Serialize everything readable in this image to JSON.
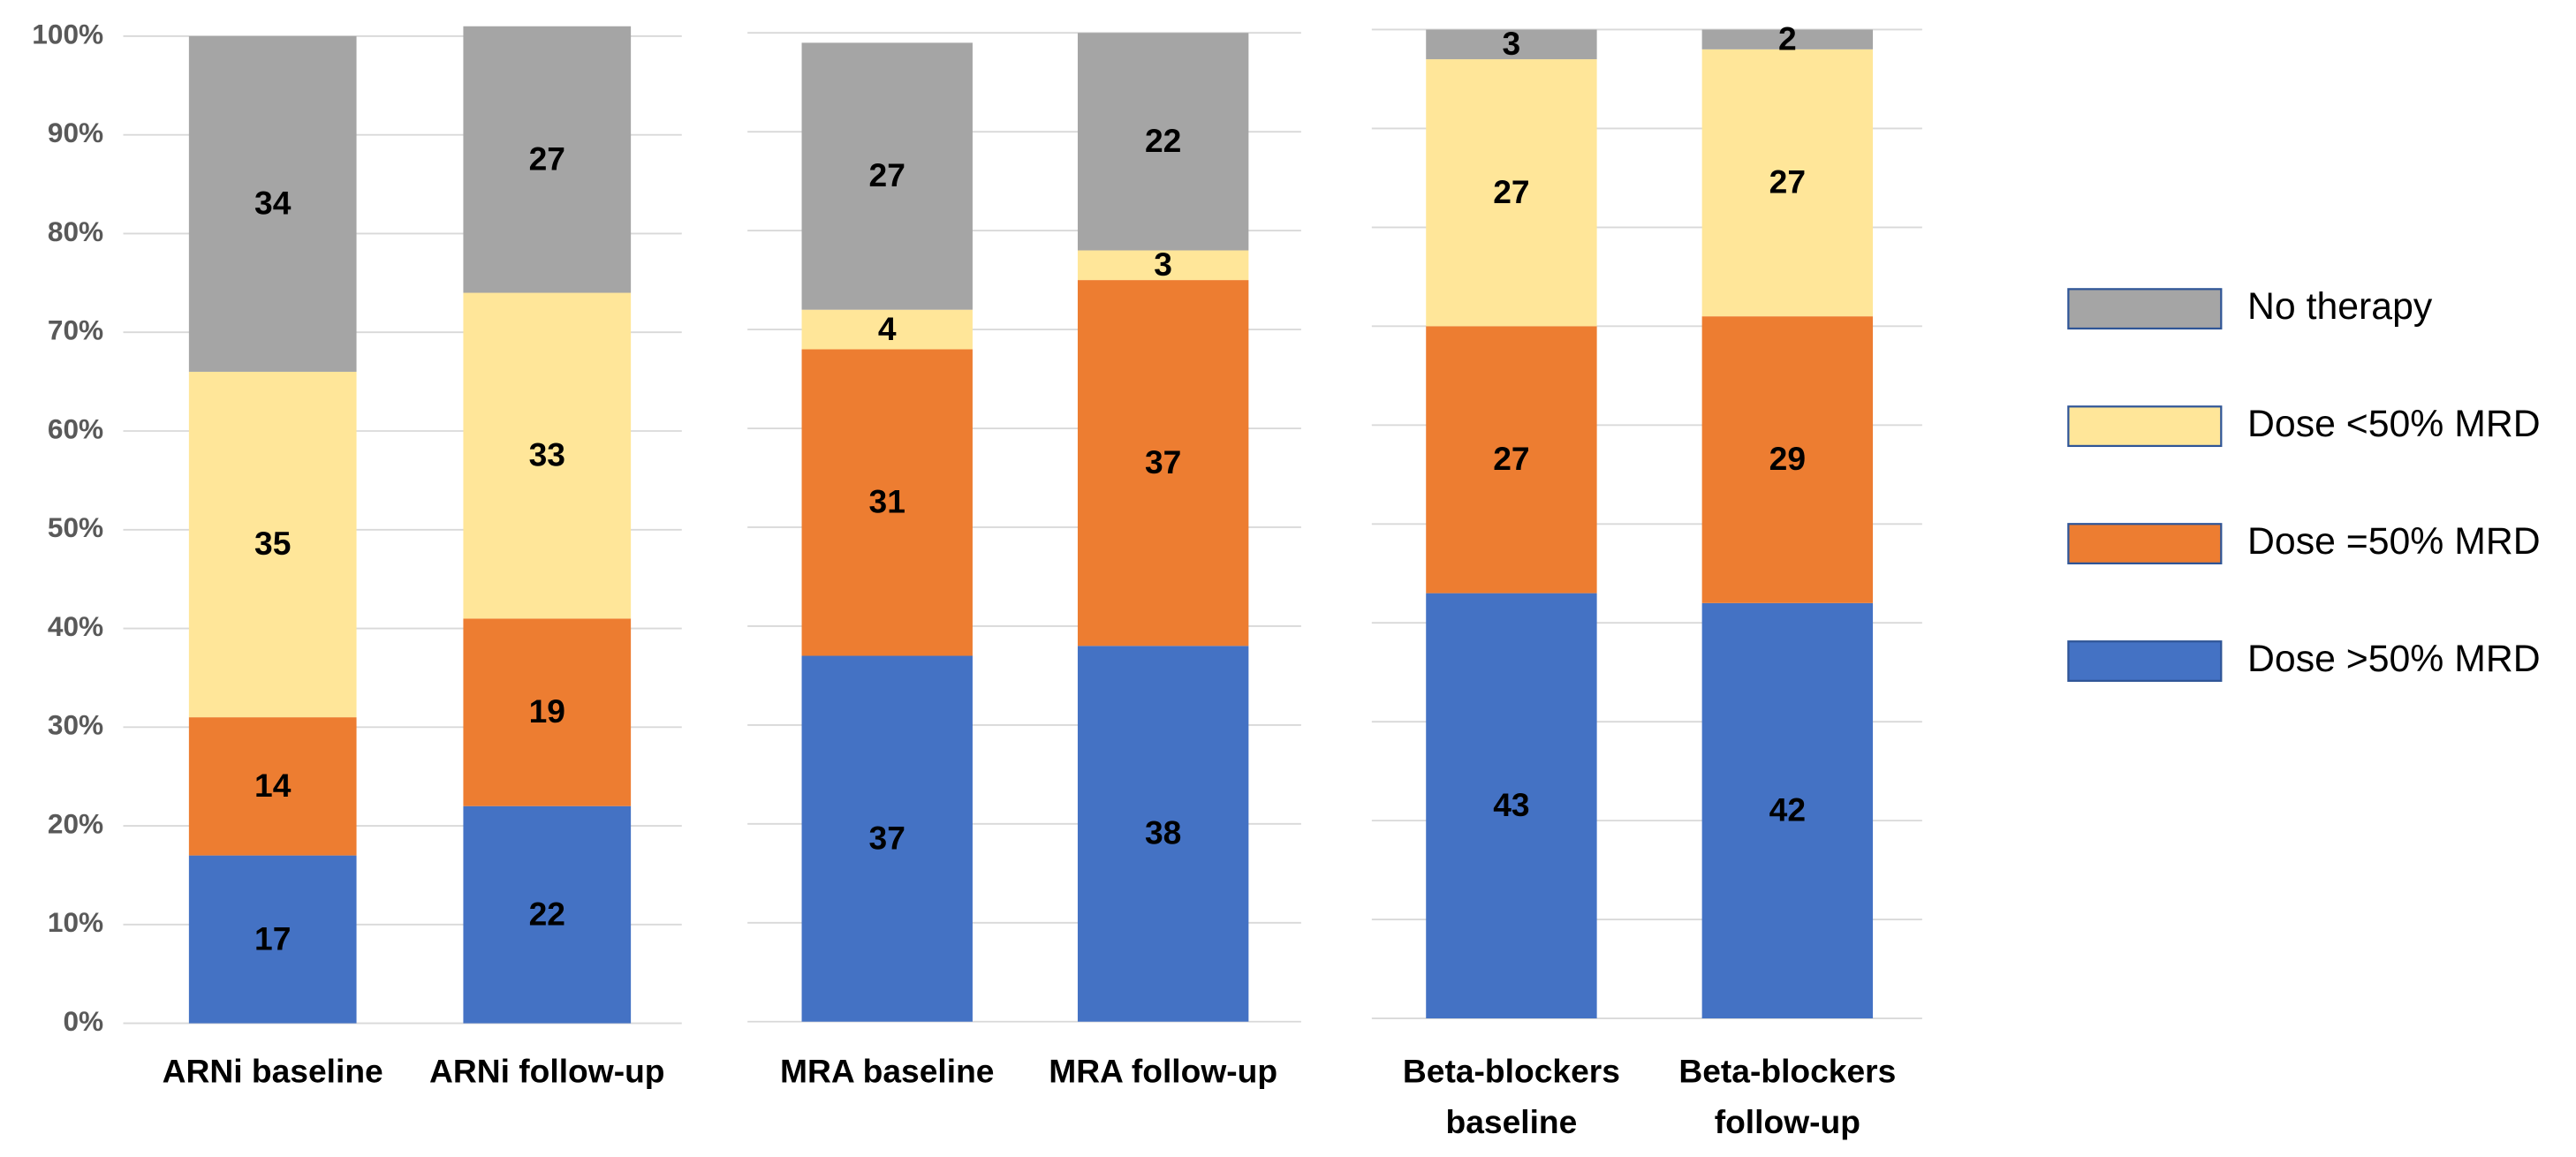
{
  "chart_data": [
    {
      "type": "stacked_bar",
      "categories": [
        "ARNi baseline",
        "ARNi follow-up"
      ],
      "series": [
        {
          "name": "Dose >50% MRD",
          "color": "#4472c4",
          "values": [
            17,
            22
          ]
        },
        {
          "name": "Dose =50% MRD",
          "color": "#ed7d31",
          "values": [
            14,
            19
          ]
        },
        {
          "name": "Dose <50% MRD",
          "color": "#ffe699",
          "values": [
            35,
            33
          ]
        },
        {
          "name": "No therapy",
          "color": "#a5a5a5",
          "values": [
            34,
            27
          ]
        }
      ],
      "ylim": [
        0,
        100
      ],
      "yticks": [
        {
          "value": 0,
          "label": "0%"
        },
        {
          "value": 10,
          "label": "10%"
        },
        {
          "value": 20,
          "label": "20%"
        },
        {
          "value": 30,
          "label": "30%"
        },
        {
          "value": 40,
          "label": "40%"
        },
        {
          "value": 50,
          "label": "50%"
        },
        {
          "value": 60,
          "label": "60%"
        },
        {
          "value": 70,
          "label": "70%"
        },
        {
          "value": 80,
          "label": "80%"
        },
        {
          "value": 90,
          "label": "90%"
        },
        {
          "value": 100,
          "label": "100%"
        }
      ],
      "show_ytick_labels": true,
      "grid": true,
      "legend": "right"
    },
    {
      "type": "stacked_bar",
      "categories": [
        "MRA baseline",
        "MRA follow-up"
      ],
      "series": [
        {
          "name": "Dose >50% MRD",
          "color": "#4472c4",
          "values": [
            37,
            38
          ]
        },
        {
          "name": "Dose =50% MRD",
          "color": "#ed7d31",
          "values": [
            31,
            37
          ]
        },
        {
          "name": "Dose <50% MRD",
          "color": "#ffe699",
          "values": [
            4,
            3
          ]
        },
        {
          "name": "No therapy",
          "color": "#a5a5a5",
          "values": [
            27,
            22
          ]
        }
      ],
      "ylim": [
        0,
        100
      ],
      "yticks": [
        0,
        10,
        20,
        30,
        40,
        50,
        60,
        70,
        80,
        90,
        100
      ],
      "show_ytick_labels": false,
      "grid": true
    },
    {
      "type": "stacked_bar",
      "categories": [
        "Beta-blockers baseline",
        "Beta-blockers follow-up"
      ],
      "series": [
        {
          "name": "Dose >50% MRD",
          "color": "#4472c4",
          "values": [
            43,
            42
          ]
        },
        {
          "name": "Dose =50% MRD",
          "color": "#ed7d31",
          "values": [
            27,
            29
          ]
        },
        {
          "name": "Dose <50% MRD",
          "color": "#ffe699",
          "values": [
            27,
            27
          ]
        },
        {
          "name": "No therapy",
          "color": "#a5a5a5",
          "values": [
            3,
            2
          ]
        }
      ],
      "ylim": [
        0,
        100
      ],
      "yticks": [
        0,
        10,
        20,
        30,
        40,
        50,
        60,
        70,
        80,
        90,
        100
      ],
      "show_ytick_labels": false,
      "grid": true
    }
  ]
}
